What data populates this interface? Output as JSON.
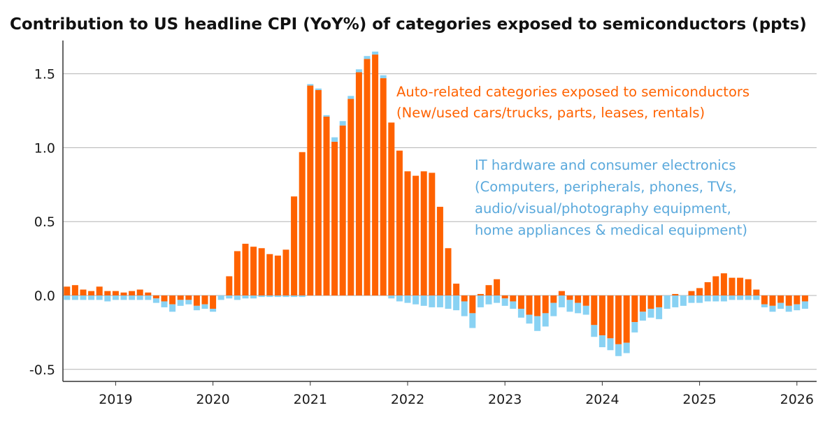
{
  "chart_data": {
    "type": "bar",
    "stacked": true,
    "title": "Contribution to US headline CPI (YoY%) of categories exposed to semiconductors (ppts)",
    "xlabel": "",
    "ylabel": "",
    "ylim": [
      -0.55,
      1.72
    ],
    "yticks": [
      "1.5",
      "1.0",
      "0.5",
      "0.0",
      "-0.5"
    ],
    "ytick_values": [
      1.5,
      1.0,
      0.5,
      0.0,
      -0.5
    ],
    "grid": true,
    "frequency": "monthly",
    "start_month": "2018-07",
    "x_range": [
      "2018-07",
      "2025-12"
    ],
    "xticks": [
      "2019",
      "2020",
      "2021",
      "2022",
      "2023",
      "2024",
      "2025",
      "2026"
    ],
    "series": [
      {
        "name": "Auto-related categories exposed to semiconductors (New/used cars/trucks, parts, leases, rentals)",
        "color": "#ff6200",
        "values": [
          0.06,
          0.07,
          0.04,
          0.03,
          0.06,
          0.03,
          0.03,
          0.02,
          0.03,
          0.04,
          0.02,
          -0.02,
          -0.04,
          -0.06,
          -0.03,
          -0.03,
          -0.07,
          -0.06,
          -0.09,
          0.0,
          0.13,
          0.3,
          0.35,
          0.33,
          0.32,
          0.28,
          0.27,
          0.31,
          0.67,
          0.97,
          1.42,
          1.39,
          1.21,
          1.04,
          1.15,
          1.33,
          1.51,
          1.6,
          1.63,
          1.47,
          1.17,
          0.98,
          0.84,
          0.81,
          0.84,
          0.83,
          0.6,
          0.32,
          0.08,
          -0.04,
          -0.12,
          0.01,
          0.07,
          0.11,
          -0.02,
          -0.04,
          -0.09,
          -0.13,
          -0.14,
          -0.12,
          -0.05,
          0.03,
          -0.03,
          -0.05,
          -0.07,
          -0.2,
          -0.27,
          -0.29,
          -0.33,
          -0.32,
          -0.18,
          -0.11,
          -0.09,
          -0.08,
          0.0,
          0.01,
          0.0,
          0.03,
          0.05,
          0.09,
          0.13,
          0.15,
          0.12,
          0.12,
          0.11,
          0.04,
          -0.06,
          -0.07,
          -0.05,
          -0.07,
          -0.06,
          -0.04
        ],
        "values_2": [
          -0.03,
          -0.03,
          -0.03,
          -0.03,
          -0.03,
          -0.04,
          -0.03,
          -0.03,
          -0.03,
          -0.03,
          -0.03,
          -0.03,
          -0.04,
          -0.05,
          -0.04,
          -0.03,
          -0.03,
          -0.03,
          -0.02,
          -0.03,
          -0.02,
          -0.03,
          -0.02,
          -0.02,
          -0.01,
          -0.01,
          -0.01,
          -0.01,
          -0.01,
          -0.01,
          0.01,
          0.01,
          0.01,
          0.03,
          0.03,
          0.02,
          0.02,
          0.02,
          0.02,
          0.02,
          -0.02,
          -0.04,
          -0.05,
          -0.06,
          -0.07,
          -0.08,
          -0.08,
          -0.09,
          -0.1,
          -0.1,
          -0.1,
          -0.08,
          -0.06,
          -0.05,
          -0.05,
          -0.05,
          -0.06,
          -0.06,
          -0.1,
          -0.09,
          -0.09,
          -0.08,
          -0.08,
          -0.07,
          -0.06,
          -0.08,
          -0.08,
          -0.08,
          -0.08,
          -0.07,
          -0.07,
          -0.06,
          -0.06,
          -0.08,
          -0.09,
          -0.08,
          -0.07,
          -0.05,
          -0.05,
          -0.04,
          -0.04,
          -0.04,
          -0.03,
          -0.03,
          -0.03,
          -0.03,
          -0.02,
          -0.04,
          -0.04,
          -0.04,
          -0.04,
          -0.05
        ]
      },
      {
        "name": "IT hardware and consumer electronics (Computers, peripherals, phones, TVs, audio/visual/photography equipment, home appliances & medical equipment)",
        "color": "#89d2f3",
        "values": [
          -0.03,
          -0.03,
          -0.03,
          -0.03,
          -0.03,
          -0.04,
          -0.03,
          -0.03,
          -0.03,
          -0.03,
          -0.03,
          -0.03,
          -0.04,
          -0.05,
          -0.04,
          -0.03,
          -0.03,
          -0.03,
          -0.02,
          -0.03,
          -0.02,
          -0.03,
          -0.02,
          -0.02,
          -0.01,
          -0.01,
          -0.01,
          -0.01,
          -0.01,
          -0.01,
          0.01,
          0.01,
          0.01,
          0.03,
          0.03,
          0.02,
          0.02,
          0.02,
          0.02,
          0.02,
          -0.02,
          -0.04,
          -0.05,
          -0.06,
          -0.07,
          -0.08,
          -0.08,
          -0.09,
          -0.1,
          -0.1,
          -0.1,
          -0.08,
          -0.06,
          -0.05,
          -0.05,
          -0.05,
          -0.06,
          -0.06,
          -0.1,
          -0.09,
          -0.09,
          -0.08,
          -0.08,
          -0.07,
          -0.06,
          -0.08,
          -0.08,
          -0.08,
          -0.08,
          -0.07,
          -0.07,
          -0.06,
          -0.06,
          -0.08,
          -0.09,
          -0.08,
          -0.07,
          -0.05,
          -0.05,
          -0.04,
          -0.04,
          -0.04,
          -0.03,
          -0.03,
          -0.03,
          -0.03,
          -0.02,
          -0.04,
          -0.04,
          -0.04,
          -0.04,
          -0.05
        ]
      }
    ],
    "annotations": [
      {
        "series": 0,
        "lines": [
          "Auto-related categories exposed to semiconductors",
          "(New/used cars/trucks, parts, leases, rentals)"
        ]
      },
      {
        "series": 1,
        "lines": [
          "IT hardware and consumer electronics",
          "(Computers, peripherals, phones, TVs,",
          "audio/visual/photography equipment,",
          "home appliances & medical equipment)"
        ]
      }
    ]
  }
}
